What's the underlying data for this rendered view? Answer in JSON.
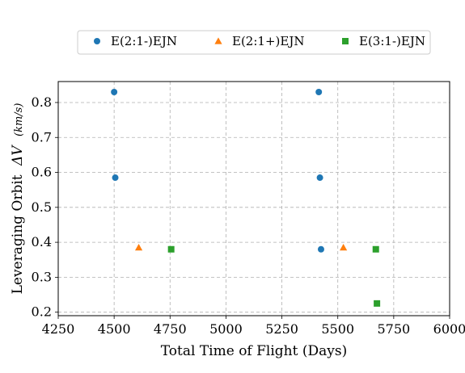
{
  "chart_data": {
    "type": "scatter",
    "title": "",
    "xlabel": "Total Time of Flight (Days)",
    "ylabel_text": "Leveraging Orbit",
    "ylabel_symbol": "ΔV",
    "ylabel_unit": "(km/s)",
    "xlim": [
      4250,
      6000
    ],
    "ylim": [
      0.19,
      0.86
    ],
    "xticks": [
      4250,
      4500,
      4750,
      5000,
      5250,
      5500,
      5750,
      6000
    ],
    "xtick_labels": [
      "4250",
      "4500",
      "4750",
      "5000",
      "5250",
      "5500",
      "5750",
      "6000"
    ],
    "yticks": [
      0.2,
      0.3,
      0.4,
      0.5,
      0.6,
      0.7,
      0.8
    ],
    "ytick_labels": [
      "0.2",
      "0.3",
      "0.4",
      "0.5",
      "0.6",
      "0.7",
      "0.8"
    ],
    "grid": true,
    "legend_position": "top-center",
    "series": [
      {
        "name": "E(2:1-)EJN",
        "marker": "circle",
        "color": "#1f77b4",
        "points": [
          {
            "x": 4500,
            "y": 0.83
          },
          {
            "x": 4505,
            "y": 0.585
          },
          {
            "x": 5415,
            "y": 0.83
          },
          {
            "x": 5420,
            "y": 0.585
          },
          {
            "x": 5425,
            "y": 0.38
          }
        ]
      },
      {
        "name": "E(2:1+)EJN",
        "marker": "triangle",
        "color": "#ff7f0e",
        "points": [
          {
            "x": 4610,
            "y": 0.385
          },
          {
            "x": 5525,
            "y": 0.385
          }
        ]
      },
      {
        "name": "E(3:1-)EJN",
        "marker": "square",
        "color": "#2ca02c",
        "points": [
          {
            "x": 4755,
            "y": 0.38
          },
          {
            "x": 5670,
            "y": 0.38
          },
          {
            "x": 5675,
            "y": 0.225
          }
        ]
      }
    ]
  }
}
